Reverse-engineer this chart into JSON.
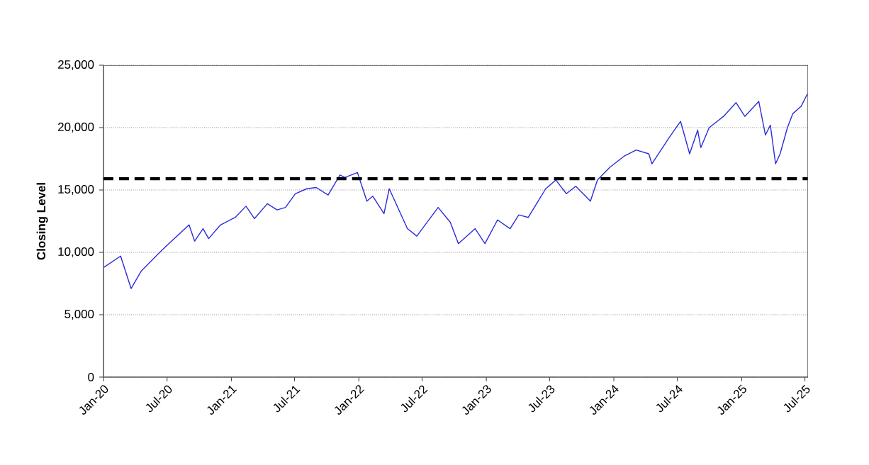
{
  "chart_data": {
    "type": "line",
    "ylabel": "Closing Level",
    "x": [
      "2020-01-02",
      "2020-02-19",
      "2020-03-20",
      "2020-04-18",
      "2020-06-10",
      "2020-07-06",
      "2020-09-02",
      "2020-09-18",
      "2020-10-12",
      "2020-10-28",
      "2020-12-01",
      "2021-01-12",
      "2021-02-12",
      "2021-03-08",
      "2021-04-14",
      "2021-05-12",
      "2021-06-05",
      "2021-07-03",
      "2021-08-05",
      "2021-09-01",
      "2021-10-05",
      "2021-11-08",
      "2021-11-22",
      "2021-12-28",
      "2022-01-24",
      "2022-02-10",
      "2022-03-14",
      "2022-03-29",
      "2022-05-20",
      "2022-06-16",
      "2022-08-16",
      "2022-09-20",
      "2022-10-13",
      "2022-11-30",
      "2022-12-28",
      "2023-02-02",
      "2023-03-10",
      "2023-04-04",
      "2023-05-01",
      "2023-06-20",
      "2023-07-19",
      "2023-08-18",
      "2023-09-14",
      "2023-10-26",
      "2023-11-15",
      "2023-12-20",
      "2024-01-30",
      "2024-03-05",
      "2024-04-10",
      "2024-04-19",
      "2024-06-05",
      "2024-07-10",
      "2024-08-05",
      "2024-08-28",
      "2024-09-06",
      "2024-09-30",
      "2024-11-10",
      "2024-12-16",
      "2025-01-10",
      "2025-02-19",
      "2025-03-10",
      "2025-03-24",
      "2025-04-08",
      "2025-04-21",
      "2025-05-12",
      "2025-05-27",
      "2025-06-20",
      "2025-07-08"
    ],
    "series": [
      {
        "color": "#2b2bdd",
        "values": [
          8800,
          9700,
          7100,
          8500,
          10000,
          10700,
          12200,
          10900,
          11900,
          11100,
          12200,
          12800,
          13700,
          12700,
          13900,
          13400,
          13600,
          14700,
          15100,
          15200,
          14600,
          16200,
          16000,
          16400,
          14100,
          14500,
          13100,
          15100,
          11900,
          11300,
          13600,
          12400,
          10700,
          11900,
          10700,
          12600,
          11900,
          13000,
          12800,
          15100,
          15800,
          14700,
          15300,
          14100,
          15800,
          16800,
          17700,
          18200,
          17900,
          17100,
          19100,
          20500,
          17900,
          19800,
          18400,
          20000,
          20900,
          22000,
          20900,
          22100,
          19400,
          20200,
          17100,
          17900,
          20000,
          21100,
          21700,
          22700
        ]
      }
    ],
    "xlim": [
      "2020-01-01",
      "2025-07-10"
    ],
    "xticks": [
      {
        "value": "2020-01-01",
        "label": "Jan-20"
      },
      {
        "value": "2020-07-01",
        "label": "Jul-20"
      },
      {
        "value": "2021-01-01",
        "label": "Jan-21"
      },
      {
        "value": "2021-07-01",
        "label": "Jul-21"
      },
      {
        "value": "2022-01-01",
        "label": "Jan-22"
      },
      {
        "value": "2022-07-01",
        "label": "Jul-22"
      },
      {
        "value": "2023-01-01",
        "label": "Jan-23"
      },
      {
        "value": "2023-07-01",
        "label": "Jul-23"
      },
      {
        "value": "2024-01-01",
        "label": "Jan-24"
      },
      {
        "value": "2024-07-01",
        "label": "Jul-24"
      },
      {
        "value": "2025-01-01",
        "label": "Jan-25"
      },
      {
        "value": "2025-07-01",
        "label": "Jul-25"
      }
    ],
    "ylim": [
      0,
      25000
    ],
    "yticks": [
      {
        "value": 0,
        "label": "0"
      },
      {
        "value": 5000,
        "label": "5,000"
      },
      {
        "value": 10000,
        "label": "10,000"
      },
      {
        "value": 15000,
        "label": "15,000"
      },
      {
        "value": 20000,
        "label": "20,000"
      },
      {
        "value": 25000,
        "label": "25,000"
      }
    ],
    "ref_lines": [
      {
        "axis": "y",
        "value": 15900,
        "color": "#000000",
        "line_style": "dashed"
      }
    ],
    "grid": "y",
    "marker": "none",
    "line_style": "solid"
  }
}
